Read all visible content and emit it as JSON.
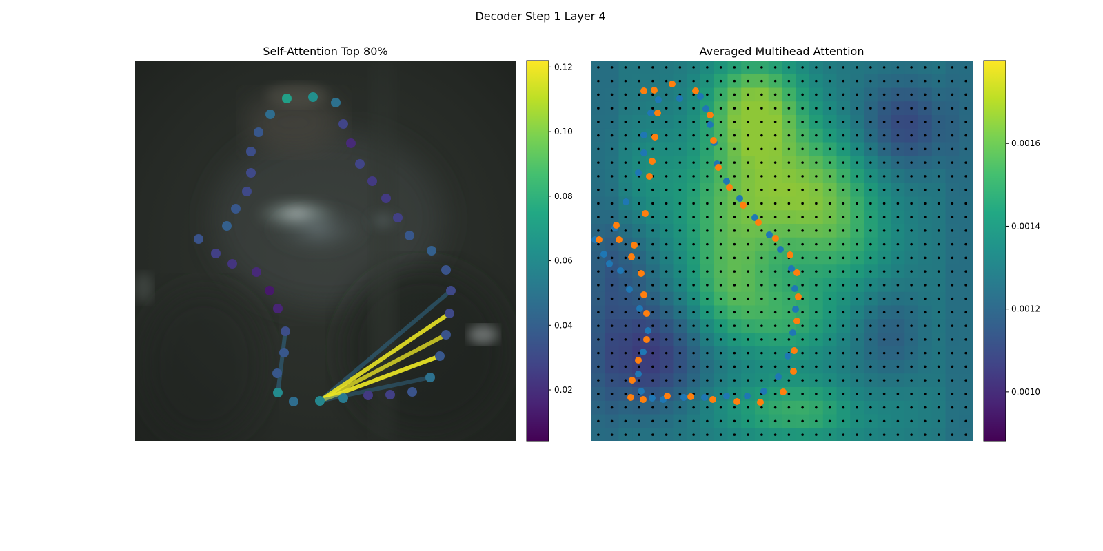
{
  "figure": {
    "title": "Decoder Step 1 Layer 4"
  },
  "chart_data": [
    {
      "type": "scatter",
      "title": "Self-Attention Top 80%",
      "description_of_background": "blurred dark photo",
      "colormap": "viridis",
      "colorbar": {
        "min": 0.004,
        "max": 0.122,
        "ticks": [
          "0.02",
          "0.04",
          "0.06",
          "0.08",
          "0.10",
          "0.12"
        ],
        "tick_values": [
          0.02,
          0.04,
          0.06,
          0.08,
          0.1,
          0.12
        ]
      },
      "points": [
        {
          "x": 220,
          "y": 55,
          "v": 0.07
        },
        {
          "x": 258,
          "y": 53,
          "v": 0.062
        },
        {
          "x": 291,
          "y": 61,
          "v": 0.048
        },
        {
          "x": 302,
          "y": 92,
          "v": 0.028
        },
        {
          "x": 313,
          "y": 120,
          "v": 0.018
        },
        {
          "x": 326,
          "y": 150,
          "v": 0.028
        },
        {
          "x": 344,
          "y": 175,
          "v": 0.024
        },
        {
          "x": 364,
          "y": 200,
          "v": 0.024
        },
        {
          "x": 381,
          "y": 228,
          "v": 0.026
        },
        {
          "x": 398,
          "y": 254,
          "v": 0.036
        },
        {
          "x": 430,
          "y": 276,
          "v": 0.04
        },
        {
          "x": 451,
          "y": 304,
          "v": 0.034
        },
        {
          "x": 458,
          "y": 334,
          "v": 0.03
        },
        {
          "x": 456,
          "y": 367,
          "v": 0.03
        },
        {
          "x": 451,
          "y": 398,
          "v": 0.034
        },
        {
          "x": 442,
          "y": 429,
          "v": 0.036
        },
        {
          "x": 428,
          "y": 460,
          "v": 0.048
        },
        {
          "x": 402,
          "y": 481,
          "v": 0.034
        },
        {
          "x": 370,
          "y": 485,
          "v": 0.026
        },
        {
          "x": 338,
          "y": 486,
          "v": 0.024
        },
        {
          "x": 302,
          "y": 490,
          "v": 0.052
        },
        {
          "x": 268,
          "y": 494,
          "v": 0.058
        },
        {
          "x": 230,
          "y": 495,
          "v": 0.046
        },
        {
          "x": 207,
          "y": 482,
          "v": 0.06
        },
        {
          "x": 206,
          "y": 454,
          "v": 0.036
        },
        {
          "x": 216,
          "y": 424,
          "v": 0.036
        },
        {
          "x": 218,
          "y": 393,
          "v": 0.032
        },
        {
          "x": 207,
          "y": 360,
          "v": 0.016
        },
        {
          "x": 195,
          "y": 334,
          "v": 0.012
        },
        {
          "x": 176,
          "y": 307,
          "v": 0.018
        },
        {
          "x": 141,
          "y": 295,
          "v": 0.022
        },
        {
          "x": 117,
          "y": 280,
          "v": 0.026
        },
        {
          "x": 92,
          "y": 259,
          "v": 0.034
        },
        {
          "x": 133,
          "y": 240,
          "v": 0.04
        },
        {
          "x": 146,
          "y": 215,
          "v": 0.036
        },
        {
          "x": 162,
          "y": 190,
          "v": 0.03
        },
        {
          "x": 168,
          "y": 163,
          "v": 0.03
        },
        {
          "x": 168,
          "y": 132,
          "v": 0.032
        },
        {
          "x": 179,
          "y": 104,
          "v": 0.036
        },
        {
          "x": 196,
          "y": 78,
          "v": 0.046
        }
      ],
      "attention_edges": [
        {
          "from": 21,
          "to": 12,
          "w": 0.3
        },
        {
          "from": 21,
          "to": 13,
          "w": 0.9
        },
        {
          "from": 21,
          "to": 14,
          "w": 0.7
        },
        {
          "from": 21,
          "to": 15,
          "w": 0.95
        },
        {
          "from": 21,
          "to": 16,
          "w": 0.2
        },
        {
          "from": 23,
          "to": 26,
          "w": 0.3
        }
      ]
    },
    {
      "type": "heatmap",
      "title": "Averaged Multihead Attention",
      "colormap": "viridis",
      "colorbar": {
        "min": 0.00088,
        "max": 0.0018,
        "ticks": [
          "0.0010",
          "0.0012",
          "0.0014",
          "0.0016"
        ],
        "tick_values": [
          0.001,
          0.0012,
          0.0014,
          0.0016
        ]
      },
      "grid_size": 28,
      "blue_points": [
        [
          97,
          57
        ],
        [
          128,
          55
        ],
        [
          158,
          52
        ],
        [
          166,
          70
        ],
        [
          172,
          93
        ],
        [
          178,
          119
        ],
        [
          182,
          150
        ],
        [
          196,
          175
        ],
        [
          215,
          200
        ],
        [
          237,
          228
        ],
        [
          258,
          253
        ],
        [
          274,
          274
        ],
        [
          290,
          302
        ],
        [
          295,
          331
        ],
        [
          296,
          361
        ],
        [
          292,
          395
        ],
        [
          285,
          429
        ],
        [
          271,
          459
        ],
        [
          250,
          480
        ],
        [
          226,
          487
        ],
        [
          196,
          487
        ],
        [
          164,
          489
        ],
        [
          134,
          489
        ],
        [
          104,
          492
        ],
        [
          88,
          490
        ],
        [
          72,
          480
        ],
        [
          68,
          455
        ],
        [
          75,
          423
        ],
        [
          82,
          392
        ],
        [
          70,
          360
        ],
        [
          55,
          332
        ],
        [
          42,
          305
        ],
        [
          26,
          295
        ],
        [
          5,
          260
        ],
        [
          18,
          281
        ],
        [
          34,
          243
        ],
        [
          50,
          205
        ],
        [
          68,
          163
        ],
        [
          76,
          134
        ],
        [
          76,
          108
        ],
        [
          86,
          76
        ]
      ],
      "orange_points": [
        [
          76,
          44
        ],
        [
          117,
          34
        ],
        [
          151,
          44
        ],
        [
          172,
          79
        ],
        [
          177,
          116
        ],
        [
          184,
          155
        ],
        [
          200,
          184
        ],
        [
          220,
          210
        ],
        [
          242,
          235
        ],
        [
          267,
          258
        ],
        [
          288,
          282
        ],
        [
          298,
          308
        ],
        [
          300,
          343
        ],
        [
          298,
          378
        ],
        [
          294,
          421
        ],
        [
          293,
          451
        ],
        [
          278,
          481
        ],
        [
          245,
          496
        ],
        [
          211,
          495
        ],
        [
          176,
          492
        ],
        [
          144,
          488
        ],
        [
          110,
          487
        ],
        [
          75,
          492
        ],
        [
          57,
          489
        ],
        [
          59,
          464
        ],
        [
          68,
          435
        ],
        [
          80,
          405
        ],
        [
          80,
          367
        ],
        [
          76,
          340
        ],
        [
          72,
          309
        ],
        [
          58,
          285
        ],
        [
          40,
          260
        ],
        [
          11,
          260
        ],
        [
          36,
          239
        ],
        [
          62,
          268
        ],
        [
          78,
          222
        ],
        [
          84,
          168
        ],
        [
          88,
          146
        ],
        [
          92,
          111
        ],
        [
          96,
          76
        ],
        [
          91,
          43
        ]
      ]
    }
  ]
}
